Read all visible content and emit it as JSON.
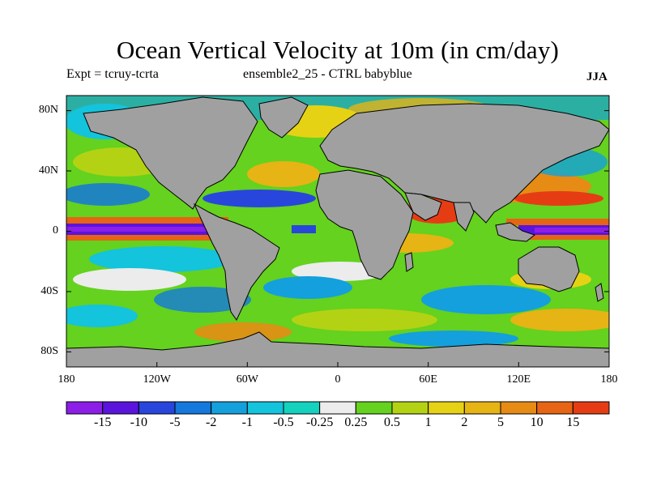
{
  "title": "Ocean Vertical Velocity at 10m (in cm/day)",
  "subtitle_left": "Expt = tcruy-tcrta",
  "subtitle_center": "ensemble2_25 - CTRL babyblue",
  "subtitle_right": "JJA",
  "map": {
    "projection": "cylindrical equidistant",
    "lon_range": [
      -180,
      180
    ],
    "lat_range": [
      -90,
      90
    ],
    "land_color": "#a0a0a0",
    "coastline_color": "#000000"
  },
  "axes": {
    "y_ticks": [
      {
        "label": "80N",
        "lat": 80
      },
      {
        "label": "40N",
        "lat": 40
      },
      {
        "label": "0",
        "lat": 0
      },
      {
        "label": "40S",
        "lat": -40
      },
      {
        "label": "80S",
        "lat": -80
      }
    ],
    "x_ticks": [
      {
        "label": "180",
        "lon": -180
      },
      {
        "label": "120W",
        "lon": -120
      },
      {
        "label": "60W",
        "lon": -60
      },
      {
        "label": "0",
        "lon": 0
      },
      {
        "label": "60E",
        "lon": 60
      },
      {
        "label": "120E",
        "lon": 120
      },
      {
        "label": "180",
        "lon": 180
      }
    ]
  },
  "colorbar": {
    "colors": [
      "#8c1ee8",
      "#5a14dc",
      "#2846dc",
      "#1478dc",
      "#14a0dc",
      "#14c3dc",
      "#14d2be",
      "#ececec",
      "#64d21e",
      "#b4d214",
      "#e6d214",
      "#e6b414",
      "#e68c14",
      "#e66414",
      "#e63c14"
    ],
    "labels": [
      "-15",
      "-10",
      "-5",
      "-2",
      "-1",
      "-0.5",
      "-0.25",
      "0.25",
      "0.5",
      "1",
      "2",
      "5",
      "10",
      "15"
    ]
  },
  "features": {
    "equatorial_pacific": "strong downwelling (purple) along equator with upwelling (red) bands at about 5N and 5S",
    "arabian_sea": "strong upwelling (red/orange)",
    "southern_ocean": "mixed, mostly green-cyan"
  }
}
